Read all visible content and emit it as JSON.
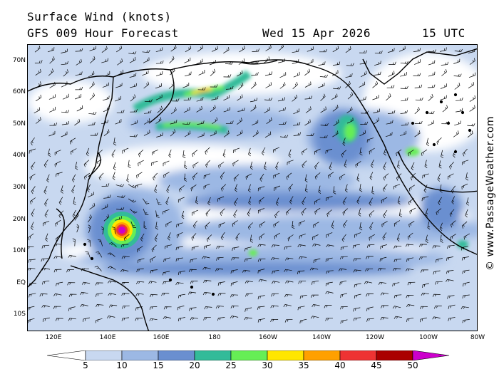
{
  "header": {
    "title": "Surface Wind (knots)",
    "model": "GFS 009 Hour Forecast",
    "date": "Wed 15 Apr 2026",
    "time": "15 UTC"
  },
  "latitude_labels": [
    "70N",
    "60N",
    "50N",
    "40N",
    "30N",
    "20N",
    "10N",
    "EQ",
    "10S"
  ],
  "longitude_labels": [
    "120E",
    "140E",
    "160E",
    "180",
    "160W",
    "140W",
    "120W",
    "100W",
    "80W"
  ],
  "credit": "© www.PassageWeather.com",
  "scale": {
    "ticks": [
      "5",
      "10",
      "15",
      "20",
      "25",
      "30",
      "35",
      "40",
      "45",
      "50"
    ],
    "colors": [
      "#ffffff",
      "#c8d8f0",
      "#9cb8e4",
      "#6a8fd0",
      "#33bb99",
      "#66ee55",
      "#ffe600",
      "#ffa000",
      "#ee3333",
      "#aa0000",
      "#cc00cc"
    ]
  }
}
